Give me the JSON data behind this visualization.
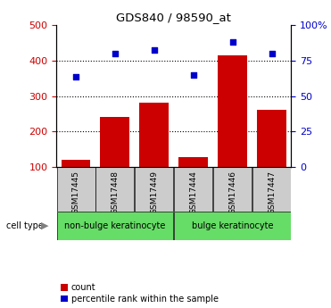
{
  "title": "GDS840 / 98590_at",
  "samples": [
    "GSM17445",
    "GSM17448",
    "GSM17449",
    "GSM17444",
    "GSM17446",
    "GSM17447"
  ],
  "bar_values": [
    120,
    240,
    282,
    128,
    413,
    262
  ],
  "scatter_values": [
    355,
    420,
    430,
    360,
    452,
    420
  ],
  "bar_color": "#cc0000",
  "scatter_color": "#0000cc",
  "ylim_left": [
    100,
    500
  ],
  "ylim_right": [
    0,
    100
  ],
  "yticks_left": [
    100,
    200,
    300,
    400,
    500
  ],
  "yticks_right": [
    0,
    25,
    50,
    75,
    100
  ],
  "yticklabels_right": [
    "0",
    "25",
    "50",
    "75",
    "100%"
  ],
  "group1_label": "non-bulge keratinocyte",
  "group2_label": "bulge keratinocyte",
  "group1_indices": [
    0,
    1,
    2
  ],
  "group2_indices": [
    3,
    4,
    5
  ],
  "cell_type_label": "cell type",
  "legend_count": "count",
  "legend_percentile": "percentile rank within the sample",
  "bar_width": 0.75,
  "xlabel_color": "#cc0000",
  "ylabel_right_color": "#0000cc",
  "grid_color": "black",
  "sample_bg": "#cccccc",
  "group_color": "#66dd66",
  "fig_width": 3.71,
  "fig_height": 3.45
}
